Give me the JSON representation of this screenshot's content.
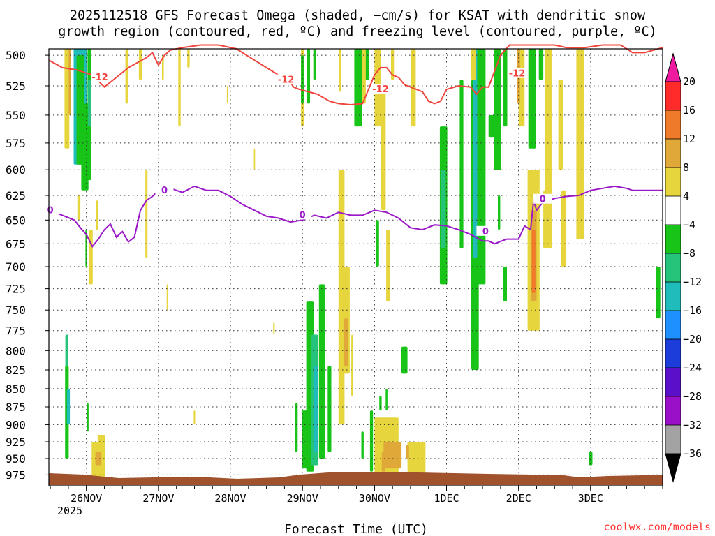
{
  "chart_data": {
    "type": "heatmap",
    "title_line1": "2025112518 GFS Forecast Omega (shaded, −cm/s) for KSAT with dendritic snow",
    "title_line2": "growth region (contoured, red, ºC) and freezing level (contoured, purple, ºC)",
    "xlabel": "Forecast Time (UTC)",
    "watermark": "coolwx.com/models",
    "y_ticks": [
      500,
      525,
      550,
      575,
      600,
      625,
      650,
      675,
      700,
      725,
      750,
      775,
      800,
      825,
      850,
      875,
      900,
      925,
      950,
      975
    ],
    "ylim_hPa": [
      992,
      495
    ],
    "xlim_hours": [
      -18.5,
      186
    ],
    "x_ticks": [
      {
        "label": "26NOV",
        "hour": -6
      },
      {
        "label": "27NOV",
        "hour": 18
      },
      {
        "label": "28NOV",
        "hour": 42
      },
      {
        "label": "29NOV",
        "hour": 66
      },
      {
        "label": "30NOV",
        "hour": 90
      },
      {
        "label": "1DEC",
        "hour": 114
      },
      {
        "label": "2DEC",
        "hour": 138
      },
      {
        "label": "3DEC",
        "hour": 162
      }
    ],
    "x_year_label": "2025",
    "colorbar": {
      "ticks": [
        "20",
        "16",
        "12",
        "8",
        "4",
        "−4",
        "−8",
        "−12",
        "−16",
        "−20",
        "−24",
        "−28",
        "−32",
        "−36"
      ],
      "bands": [
        {
          "color": "#ff2a2a"
        },
        {
          "color": "#ee7a2a"
        },
        {
          "color": "#e0a838"
        },
        {
          "color": "#e6d53c"
        },
        {
          "color": "#ffffff"
        },
        {
          "color": "#17c417"
        },
        {
          "color": "#25c47a"
        },
        {
          "color": "#20bcbc"
        },
        {
          "color": "#1e90ff"
        },
        {
          "color": "#1d3ddb"
        },
        {
          "color": "#5a10c8"
        },
        {
          "color": "#9a10c8"
        },
        {
          "color": "#a3a3a3"
        }
      ],
      "top_arrow_color": "#ee1aa0",
      "bottom_arrow_color": "#000000"
    },
    "isotherm_minus12": {
      "label": "-12",
      "color": "#f0443c",
      "hours": [
        -18.5,
        -14,
        -9,
        -4,
        0,
        4,
        8,
        11,
        14,
        16,
        18,
        20,
        22,
        26,
        32,
        38,
        44,
        50,
        54,
        58,
        60,
        62,
        63,
        65,
        68,
        71,
        75,
        78,
        82,
        86,
        88,
        90,
        92,
        94,
        96,
        98,
        100,
        102,
        106,
        108,
        110,
        112,
        114,
        118,
        122,
        124,
        126,
        128,
        132,
        135,
        136,
        138,
        142,
        146,
        150,
        154,
        160,
        166,
        172,
        176,
        180,
        186
      ],
      "hPa": [
        504,
        510,
        512,
        516,
        526,
        518,
        510,
        506,
        502,
        498,
        508,
        500,
        496,
        494,
        492,
        492,
        495,
        504,
        510,
        516,
        520,
        522,
        526,
        528,
        530,
        532,
        538,
        540,
        541,
        540,
        528,
        516,
        510,
        510,
        516,
        518,
        524,
        526,
        530,
        538,
        540,
        538,
        528,
        525,
        526,
        532,
        526,
        526,
        500,
        492,
        492,
        492,
        492,
        492,
        492,
        494,
        494,
        492,
        492,
        498,
        498,
        494
      ]
    },
    "isotherm_0": {
      "label": "0",
      "color": "#9a18c8",
      "hours": [
        -18.5,
        -14,
        -10,
        -8,
        -6,
        -4,
        -2,
        0,
        2,
        4,
        6,
        8,
        10,
        12,
        14,
        16,
        18,
        20,
        22,
        26,
        30,
        34,
        38,
        42,
        46,
        50,
        54,
        58,
        62,
        66,
        70,
        74,
        78,
        82,
        86,
        90,
        94,
        98,
        102,
        106,
        110,
        114,
        118,
        122,
        126,
        128,
        130,
        134,
        138,
        140,
        142,
        143,
        144,
        146,
        150,
        154,
        158,
        162,
        166,
        170,
        174,
        176,
        178,
        186
      ],
      "hPa": [
        640,
        645,
        650,
        658,
        665,
        678,
        670,
        660,
        654,
        668,
        662,
        673,
        668,
        640,
        630,
        626,
        620,
        620,
        618,
        622,
        616,
        620,
        620,
        626,
        634,
        640,
        646,
        648,
        652,
        650,
        645,
        648,
        642,
        645,
        645,
        640,
        642,
        648,
        658,
        660,
        655,
        656,
        660,
        665,
        672,
        672,
        675,
        670,
        670,
        656,
        660,
        630,
        640,
        632,
        628,
        626,
        625,
        620,
        618,
        616,
        618,
        620,
        620,
        620
      ]
    },
    "omega_cells": [
      {
        "h": -12.5,
        "w": 1.6,
        "p0": 495,
        "p1": 580,
        "c": "#e6d53c"
      },
      {
        "h": -11.5,
        "w": 0.8,
        "p0": 495,
        "p1": 550,
        "c": "#e0a838"
      },
      {
        "h": -8,
        "w": 1.4,
        "p0": 495,
        "p1": 535,
        "c": "#e6d53c"
      },
      {
        "h": -8,
        "w": 4.5,
        "p0": 495,
        "p1": 595,
        "c": "#20bcbc"
      },
      {
        "h": -8,
        "w": 2.6,
        "p0": 500,
        "p1": 595,
        "c": "#17c417"
      },
      {
        "h": -6.5,
        "w": 2.4,
        "p0": 540,
        "p1": 620,
        "c": "#17c417"
      },
      {
        "h": -5,
        "w": 1.2,
        "p0": 495,
        "p1": 610,
        "c": "#17c417"
      },
      {
        "h": -5,
        "w": 1.0,
        "p0": 520,
        "p1": 560,
        "c": "#25c47a"
      },
      {
        "h": -8.5,
        "w": 1.0,
        "p0": 625,
        "p1": 650,
        "c": "#e6d53c"
      },
      {
        "h": -4.5,
        "w": 1.2,
        "p0": 660,
        "p1": 720,
        "c": "#e6d53c"
      },
      {
        "h": -2.5,
        "w": 0.8,
        "p0": 630,
        "p1": 660,
        "c": "#e6d53c"
      },
      {
        "h": -6,
        "w": 0.6,
        "p0": 660,
        "p1": 700,
        "c": "#17c417"
      },
      {
        "h": -12.5,
        "w": 1.0,
        "p0": 780,
        "p1": 830,
        "c": "#25c47a"
      },
      {
        "h": -12.5,
        "w": 1.2,
        "p0": 820,
        "p1": 950,
        "c": "#17c417"
      },
      {
        "h": -12,
        "w": 1.0,
        "p0": 850,
        "p1": 900,
        "c": "#20bcbc"
      },
      {
        "h": -5.5,
        "w": 0.5,
        "p0": 870,
        "p1": 910,
        "c": "#17c417"
      },
      {
        "h": -3,
        "w": 2.5,
        "p0": 925,
        "p1": 985,
        "c": "#e6d53c"
      },
      {
        "h": -1,
        "w": 2.5,
        "p0": 915,
        "p1": 985,
        "c": "#e6d53c"
      },
      {
        "h": -2,
        "w": 2.0,
        "p0": 940,
        "p1": 960,
        "c": "#e0a838"
      },
      {
        "h": 7.5,
        "w": 1.0,
        "p0": 495,
        "p1": 540,
        "c": "#e6d53c"
      },
      {
        "h": 12,
        "w": 1.0,
        "p0": 495,
        "p1": 520,
        "c": "#e6d53c"
      },
      {
        "h": 14,
        "w": 0.7,
        "p0": 600,
        "p1": 690,
        "c": "#e6d53c"
      },
      {
        "h": 19.5,
        "w": 0.6,
        "p0": 500,
        "p1": 520,
        "c": "#e6d53c"
      },
      {
        "h": 25,
        "w": 0.8,
        "p0": 495,
        "p1": 560,
        "c": "#e6d53c"
      },
      {
        "h": 28,
        "w": 0.8,
        "p0": 495,
        "p1": 510,
        "c": "#e6d53c"
      },
      {
        "h": 30,
        "w": 0.5,
        "p0": 880,
        "p1": 900,
        "c": "#e6d53c"
      },
      {
        "h": 21,
        "w": 0.5,
        "p0": 720,
        "p1": 750,
        "c": "#e6d53c"
      },
      {
        "h": 41,
        "w": 0.4,
        "p0": 525,
        "p1": 540,
        "c": "#e6d53c"
      },
      {
        "h": 50,
        "w": 0.4,
        "p0": 580,
        "p1": 600,
        "c": "#e6d53c"
      },
      {
        "h": 56.5,
        "w": 0.5,
        "p0": 765,
        "p1": 780,
        "c": "#e6d53c"
      },
      {
        "h": 66,
        "w": 1.0,
        "p0": 495,
        "p1": 560,
        "c": "#e6d53c"
      },
      {
        "h": 68,
        "w": 1.0,
        "p0": 495,
        "p1": 540,
        "c": "#17c417"
      },
      {
        "h": 70,
        "w": 0.8,
        "p0": 495,
        "p1": 520,
        "c": "#17c417"
      },
      {
        "h": 66,
        "w": 1.0,
        "p0": 500,
        "p1": 540,
        "c": "#17c417"
      },
      {
        "h": 68.5,
        "w": 2.5,
        "p0": 740,
        "p1": 970,
        "c": "#17c417"
      },
      {
        "h": 70,
        "w": 2.5,
        "p0": 780,
        "p1": 960,
        "c": "#25c47a"
      },
      {
        "h": 70.5,
        "w": 1.2,
        "p0": 820,
        "p1": 940,
        "c": "#20bcbc"
      },
      {
        "h": 67,
        "w": 2.5,
        "p0": 880,
        "p1": 965,
        "c": "#17c417"
      },
      {
        "h": 72.5,
        "w": 2.0,
        "p0": 720,
        "p1": 950,
        "c": "#17c417"
      },
      {
        "h": 75,
        "w": 1.2,
        "p0": 820,
        "p1": 940,
        "c": "#17c417"
      },
      {
        "h": 64,
        "w": 0.8,
        "p0": 870,
        "p1": 940,
        "c": "#17c417"
      },
      {
        "h": 78.5,
        "w": 0.5,
        "p0": 650,
        "p1": 700,
        "c": "#17c417"
      },
      {
        "h": 78.5,
        "w": 0.8,
        "p0": 495,
        "p1": 530,
        "c": "#e6d53c"
      },
      {
        "h": 79,
        "w": 2.0,
        "p0": 600,
        "p1": 900,
        "c": "#e6d53c"
      },
      {
        "h": 80.5,
        "w": 2.5,
        "p0": 700,
        "p1": 830,
        "c": "#e6d53c"
      },
      {
        "h": 80.5,
        "w": 1.2,
        "p0": 760,
        "p1": 820,
        "c": "#e0a838"
      },
      {
        "h": 82.5,
        "w": 0.5,
        "p0": 780,
        "p1": 860,
        "c": "#e6d53c"
      },
      {
        "h": 84.5,
        "w": 2.5,
        "p0": 495,
        "p1": 560,
        "c": "#17c417"
      },
      {
        "h": 87.5,
        "w": 1.5,
        "p0": 495,
        "p1": 520,
        "c": "#17c417"
      },
      {
        "h": 86.5,
        "w": 1.2,
        "p0": 495,
        "p1": 540,
        "c": "#e6d53c"
      },
      {
        "h": 91,
        "w": 2.0,
        "p0": 495,
        "p1": 560,
        "c": "#e6d53c"
      },
      {
        "h": 93,
        "w": 1.5,
        "p0": 530,
        "p1": 640,
        "c": "#e6d53c"
      },
      {
        "h": 96,
        "w": 1.0,
        "p0": 495,
        "p1": 520,
        "c": "#e6d53c"
      },
      {
        "h": 103,
        "w": 1.5,
        "p0": 495,
        "p1": 560,
        "c": "#e6d53c"
      },
      {
        "h": 94.5,
        "w": 1.2,
        "p0": 660,
        "p1": 740,
        "c": "#e6d53c"
      },
      {
        "h": 91,
        "w": 1.0,
        "p0": 650,
        "p1": 700,
        "c": "#17c417"
      },
      {
        "h": 86,
        "w": 0.8,
        "p0": 910,
        "p1": 950,
        "c": "#17c417"
      },
      {
        "h": 89,
        "w": 1.0,
        "p0": 880,
        "p1": 970,
        "c": "#17c417"
      },
      {
        "h": 92,
        "w": 0.8,
        "p0": 860,
        "p1": 880,
        "c": "#17c417"
      },
      {
        "h": 94,
        "w": 0.6,
        "p0": 850,
        "p1": 880,
        "c": "#17c417"
      },
      {
        "h": 100,
        "w": 2.0,
        "p0": 795,
        "p1": 830,
        "c": "#17c417"
      },
      {
        "h": 94,
        "w": 8.0,
        "p0": 890,
        "p1": 985,
        "c": "#e6d53c"
      },
      {
        "h": 104,
        "w": 6.0,
        "p0": 925,
        "p1": 985,
        "c": "#e6d53c"
      },
      {
        "h": 96,
        "w": 6.0,
        "p0": 925,
        "p1": 965,
        "c": "#e0a838"
      },
      {
        "h": 93,
        "w": 1.2,
        "p0": 940,
        "p1": 970,
        "c": "#e0a838"
      },
      {
        "h": 101,
        "w": 1.0,
        "p0": 930,
        "p1": 950,
        "c": "#e0a838"
      },
      {
        "h": 113,
        "w": 2.5,
        "p0": 560,
        "p1": 720,
        "c": "#17c417"
      },
      {
        "h": 113,
        "w": 1.5,
        "p0": 600,
        "p1": 680,
        "c": "#25c47a"
      },
      {
        "h": 119,
        "w": 1.2,
        "p0": 520,
        "p1": 680,
        "c": "#17c417"
      },
      {
        "h": 123.5,
        "w": 2.5,
        "p0": 520,
        "p1": 825,
        "c": "#17c417"
      },
      {
        "h": 125,
        "w": 4.0,
        "p0": 495,
        "p1": 720,
        "c": "#17c417"
      },
      {
        "h": 123.5,
        "w": 1.5,
        "p0": 495,
        "p1": 690,
        "c": "#20bcbc"
      },
      {
        "h": 123,
        "w": 1.5,
        "p0": 495,
        "p1": 520,
        "c": "#e6d53c"
      },
      {
        "h": 130,
        "w": 4.0,
        "p0": 550,
        "p1": 570,
        "c": "#17c417"
      },
      {
        "h": 131,
        "w": 2.5,
        "p0": 495,
        "p1": 600,
        "c": "#17c417"
      },
      {
        "h": 133.5,
        "w": 1.5,
        "p0": 495,
        "p1": 560,
        "c": "#17c417"
      },
      {
        "h": 131.5,
        "w": 0.8,
        "p0": 625,
        "p1": 660,
        "c": "#17c417"
      },
      {
        "h": 133.5,
        "w": 1.2,
        "p0": 700,
        "p1": 740,
        "c": "#17c417"
      },
      {
        "h": 139,
        "w": 2.0,
        "p0": 495,
        "p1": 560,
        "c": "#e6d53c"
      },
      {
        "h": 138,
        "w": 1.0,
        "p0": 495,
        "p1": 540,
        "c": "#e0a838"
      },
      {
        "h": 142.5,
        "w": 2.5,
        "p0": 495,
        "p1": 580,
        "c": "#17c417"
      },
      {
        "h": 145.5,
        "w": 1.5,
        "p0": 495,
        "p1": 520,
        "c": "#17c417"
      },
      {
        "h": 148,
        "w": 2.5,
        "p0": 495,
        "p1": 680,
        "c": "#e6d53c"
      },
      {
        "h": 152,
        "w": 1.5,
        "p0": 520,
        "p1": 600,
        "c": "#e6d53c"
      },
      {
        "h": 143,
        "w": 4.0,
        "p0": 600,
        "p1": 775,
        "c": "#e6d53c"
      },
      {
        "h": 143,
        "w": 2.0,
        "p0": 640,
        "p1": 740,
        "c": "#e0a838"
      },
      {
        "h": 143,
        "w": 1.2,
        "p0": 660,
        "p1": 730,
        "c": "#ee7a2a"
      },
      {
        "h": 147,
        "w": 1.5,
        "p0": 620,
        "p1": 680,
        "c": "#e6d53c"
      },
      {
        "h": 153,
        "w": 1.5,
        "p0": 620,
        "p1": 700,
        "c": "#e6d53c"
      },
      {
        "h": 158.5,
        "w": 2.5,
        "p0": 495,
        "p1": 670,
        "c": "#e6d53c"
      },
      {
        "h": 162,
        "w": 1.2,
        "p0": 940,
        "p1": 960,
        "c": "#17c417"
      },
      {
        "h": 184.5,
        "w": 1.5,
        "p0": 700,
        "p1": 760,
        "c": "#17c417"
      }
    ]
  }
}
